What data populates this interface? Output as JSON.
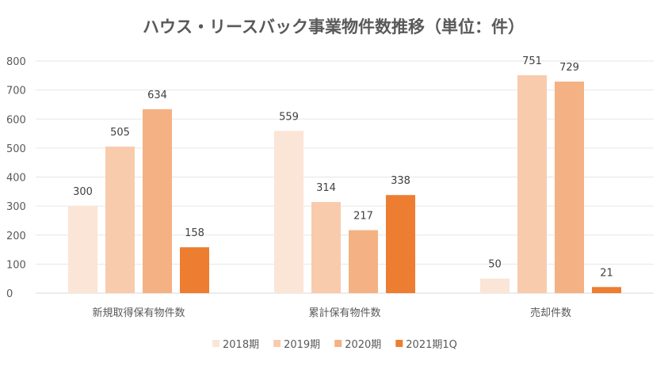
{
  "chart_data": {
    "type": "bar",
    "title": "ハウス・リースバック事業物件数推移（単位：件）",
    "categories": [
      "新規取得保有物件数",
      "累計保有物件数",
      "売却件数"
    ],
    "series": [
      {
        "name": "2018期",
        "values": [
          300,
          559,
          50
        ],
        "color": "#FBE5D6"
      },
      {
        "name": "2019期",
        "values": [
          505,
          314,
          751
        ],
        "color": "#F8CBAD"
      },
      {
        "name": "2020期",
        "values": [
          634,
          217,
          729
        ],
        "color": "#F4B183"
      },
      {
        "name": "2021期1Q",
        "values": [
          158,
          338,
          21
        ],
        "color": "#ED7D31"
      }
    ],
    "ylim": [
      0,
      800
    ],
    "yticks": [
      0,
      100,
      200,
      300,
      400,
      500,
      600,
      700,
      800
    ],
    "grid": true,
    "legend": "bottom",
    "data_labels": true
  }
}
